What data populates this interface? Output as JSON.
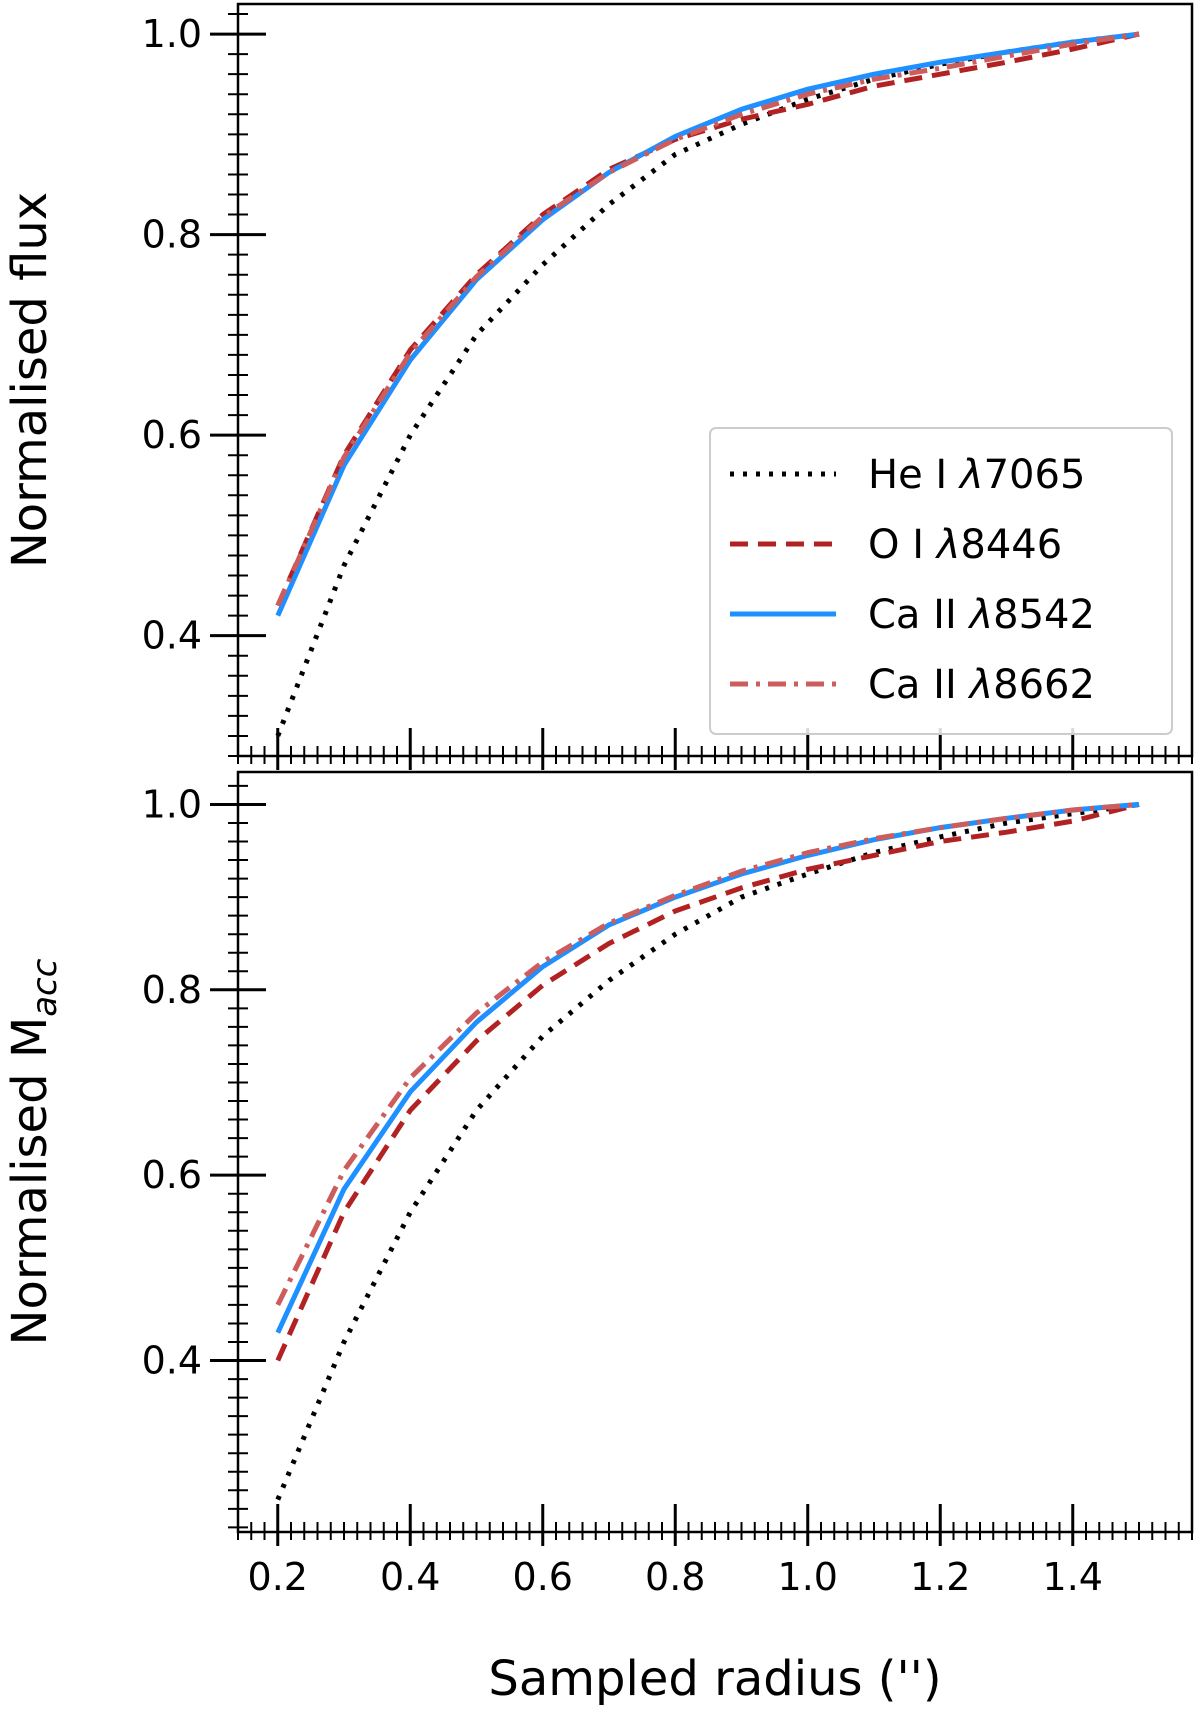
{
  "figure": {
    "xlabel": "Sampled radius ('')"
  },
  "legend": {
    "entries": [
      {
        "label": "He I λ7065",
        "series": "He I λ7065"
      },
      {
        "label": "O I λ8446",
        "series": "O I λ8446"
      },
      {
        "label": "Ca II λ8542",
        "series": "Ca II λ8542"
      },
      {
        "label": "Ca II λ8662",
        "series": "Ca II λ8662"
      }
    ]
  },
  "styles": {
    "He I λ7065": {
      "color": "#000000",
      "dash": "4 9",
      "width": 5
    },
    "O I λ8446": {
      "color": "#b22222",
      "dash": "18 10",
      "width": 5
    },
    "Ca II λ8542": {
      "color": "#1e90ff",
      "dash": "",
      "width": 5
    },
    "Ca II λ8662": {
      "color": "#cd5c5c",
      "dash": "18 8 4 8",
      "width": 5
    }
  },
  "chart_data": [
    {
      "type": "line",
      "title": "",
      "xlabel": "",
      "ylabel": "Normalised flux",
      "xlim": [
        0.14,
        1.58
      ],
      "ylim": [
        0.28,
        1.03
      ],
      "xticks": [
        0.2,
        0.4,
        0.6,
        0.8,
        1.0,
        1.2,
        1.4
      ],
      "xtick_labels": [],
      "yticks": [
        0.4,
        0.6,
        0.8,
        1.0
      ],
      "ytick_labels": [
        "0.4",
        "0.6",
        "0.8",
        "1.0"
      ],
      "legend_position": "lower-right",
      "x": [
        0.2,
        0.3,
        0.4,
        0.5,
        0.6,
        0.7,
        0.8,
        0.9,
        1.0,
        1.1,
        1.2,
        1.3,
        1.4,
        1.5
      ],
      "series": [
        {
          "name": "He I λ7065",
          "values": [
            0.3,
            0.47,
            0.6,
            0.7,
            0.77,
            0.83,
            0.88,
            0.91,
            0.935,
            0.955,
            0.97,
            0.982,
            0.992,
            1.0
          ]
        },
        {
          "name": "O I λ8446",
          "values": [
            0.43,
            0.58,
            0.685,
            0.76,
            0.82,
            0.865,
            0.895,
            0.915,
            0.93,
            0.948,
            0.96,
            0.972,
            0.985,
            1.0
          ]
        },
        {
          "name": "Ca II λ8542",
          "values": [
            0.42,
            0.57,
            0.675,
            0.755,
            0.815,
            0.862,
            0.898,
            0.925,
            0.945,
            0.96,
            0.972,
            0.982,
            0.992,
            1.0
          ]
        },
        {
          "name": "Ca II λ8662",
          "values": [
            0.43,
            0.578,
            0.682,
            0.758,
            0.818,
            0.862,
            0.895,
            0.92,
            0.94,
            0.955,
            0.966,
            0.978,
            0.99,
            1.0
          ]
        }
      ]
    },
    {
      "type": "line",
      "title": "",
      "xlabel": "Sampled radius ('')",
      "ylabel": "Normalised M",
      "ylabel_subscript": "acc",
      "xlim": [
        0.14,
        1.58
      ],
      "ylim": [
        0.215,
        1.035
      ],
      "xticks": [
        0.2,
        0.4,
        0.6,
        0.8,
        1.0,
        1.2,
        1.4
      ],
      "xtick_labels": [
        "0.2",
        "0.4",
        "0.6",
        "0.8",
        "1.0",
        "1.2",
        "1.4"
      ],
      "yticks": [
        0.4,
        0.6,
        0.8,
        1.0
      ],
      "ytick_labels": [
        "0.4",
        "0.6",
        "0.8",
        "1.0"
      ],
      "x": [
        0.2,
        0.3,
        0.4,
        0.5,
        0.6,
        0.7,
        0.8,
        0.9,
        1.0,
        1.1,
        1.2,
        1.3,
        1.4,
        1.5
      ],
      "series": [
        {
          "name": "He I λ7065",
          "values": [
            0.25,
            0.42,
            0.56,
            0.67,
            0.75,
            0.81,
            0.86,
            0.9,
            0.925,
            0.948,
            0.965,
            0.98,
            0.99,
            1.0
          ]
        },
        {
          "name": "O I λ8446",
          "values": [
            0.4,
            0.56,
            0.67,
            0.745,
            0.805,
            0.85,
            0.885,
            0.91,
            0.93,
            0.945,
            0.96,
            0.97,
            0.982,
            1.0
          ]
        },
        {
          "name": "Ca II λ8542",
          "values": [
            0.43,
            0.585,
            0.69,
            0.765,
            0.825,
            0.87,
            0.9,
            0.925,
            0.945,
            0.962,
            0.975,
            0.985,
            0.994,
            1.0
          ]
        },
        {
          "name": "Ca II λ8662",
          "values": [
            0.46,
            0.605,
            0.705,
            0.775,
            0.83,
            0.872,
            0.902,
            0.928,
            0.948,
            0.963,
            0.975,
            0.985,
            0.994,
            1.0
          ]
        }
      ]
    }
  ]
}
